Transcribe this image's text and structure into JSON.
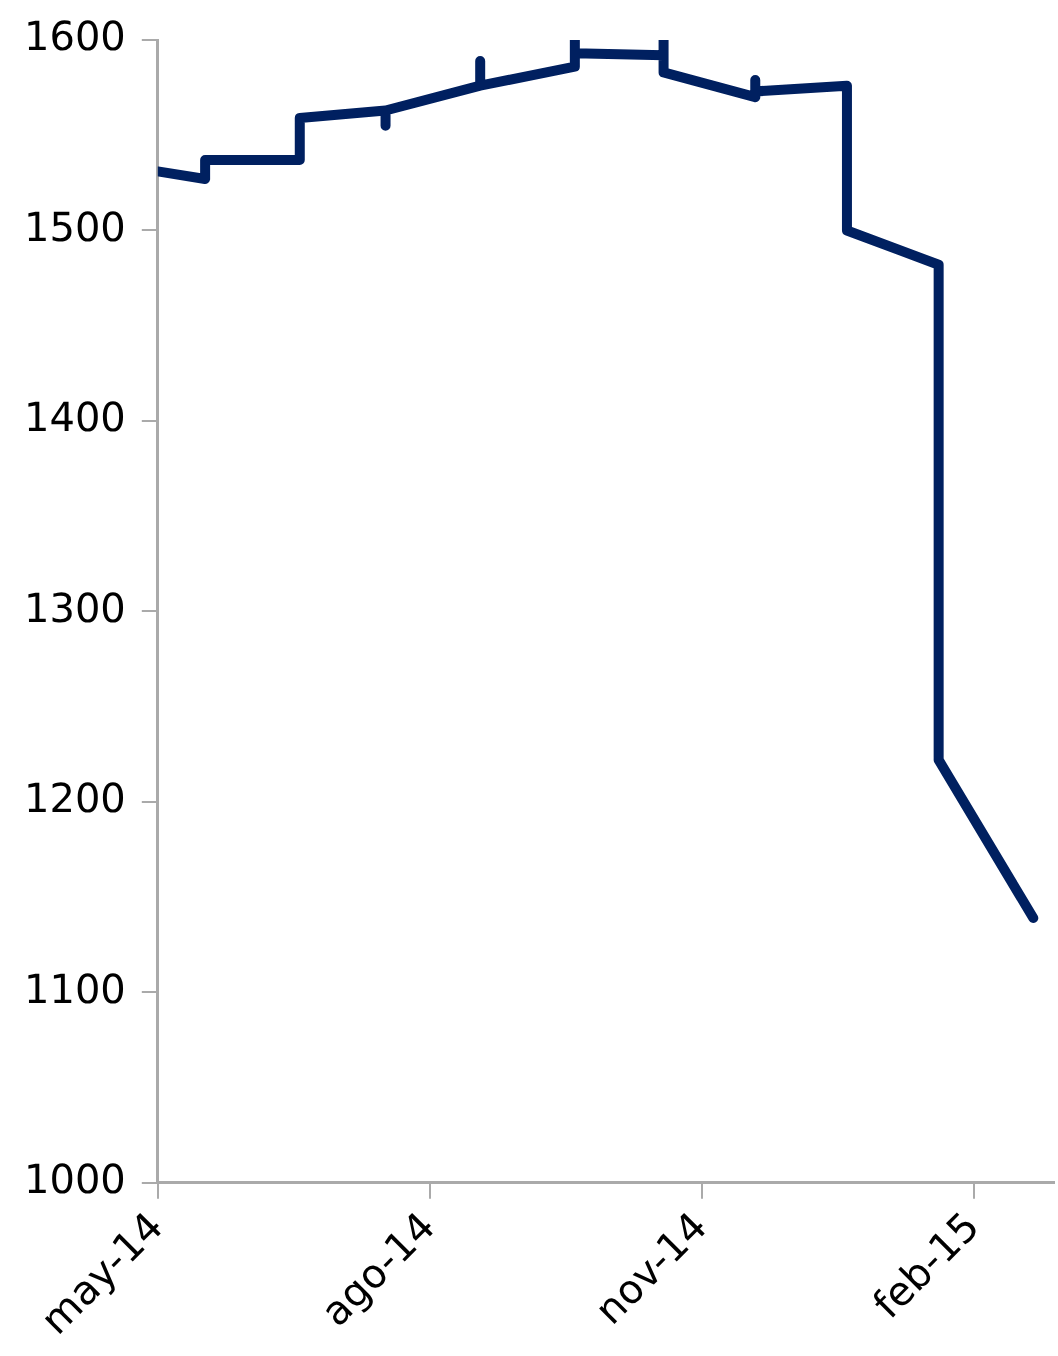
{
  "chart_data": {
    "type": "line",
    "x": [
      "2014-05-01",
      "2014-05-17",
      "2014-05-17",
      "2014-06-18",
      "2014-06-18",
      "2014-07-17",
      "2014-07-17",
      "2014-07-17",
      "2014-08-18",
      "2014-08-18",
      "2014-08-18",
      "2014-09-19",
      "2014-09-19",
      "2014-09-19",
      "2014-10-19",
      "2014-10-19",
      "2014-10-19",
      "2014-11-19",
      "2014-11-19",
      "2014-11-19",
      "2014-12-20",
      "2014-12-20",
      "2015-01-20",
      "2015-01-20",
      "2015-02-21"
    ],
    "series": [
      {
        "color": "#002060",
        "values": [
          1531,
          1527,
          1537,
          1537,
          1559,
          1563,
          1555,
          1563,
          1576,
          1589,
          1576,
          1586,
          1600,
          1593,
          1592,
          1600,
          1583,
          1570,
          1579,
          1573,
          1576,
          1500,
          1482,
          1222,
          1139
        ]
      }
    ],
    "xlim": [
      "2014-05-01",
      "2015-02-28"
    ],
    "xticks": [
      {
        "value": "2014-05-01",
        "label": "may-14"
      },
      {
        "value": "2014-08-01",
        "label": "ago-14"
      },
      {
        "value": "2014-11-01",
        "label": "nov-14"
      },
      {
        "value": "2015-02-01",
        "label": "feb-15"
      }
    ],
    "ylim": [
      1000,
      1600
    ],
    "yticks": [
      1000,
      1100,
      1200,
      1300,
      1400,
      1500,
      1600
    ],
    "grid": false,
    "legend": false,
    "marker": "none",
    "line_style": "solid"
  }
}
